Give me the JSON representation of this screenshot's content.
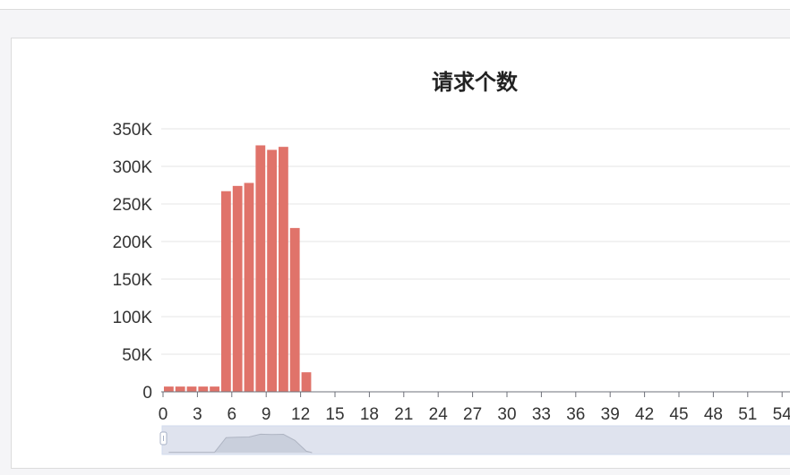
{
  "chart_data": {
    "type": "bar",
    "title": "请求个数",
    "xlabel": "",
    "ylabel": "",
    "ylim": [
      0,
      350000
    ],
    "yticks": [
      "0",
      "50K",
      "100K",
      "150K",
      "200K",
      "250K",
      "300K",
      "350K"
    ],
    "xticks": [
      "0",
      "3",
      "6",
      "9",
      "12",
      "15",
      "18",
      "21",
      "24",
      "27",
      "30",
      "33",
      "36",
      "39",
      "42",
      "45",
      "48",
      "51",
      "54"
    ],
    "categories": [
      0,
      1,
      2,
      3,
      4,
      5,
      6,
      7,
      8,
      9,
      10,
      11,
      12
    ],
    "values": [
      7000,
      7000,
      7000,
      7000,
      7000,
      267000,
      274000,
      278000,
      328000,
      322000,
      326000,
      218000,
      26000
    ],
    "bar_color": "#e0736a",
    "grid": true
  }
}
